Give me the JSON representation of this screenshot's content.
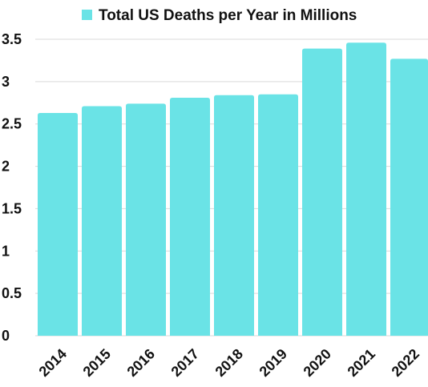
{
  "chart_data": {
    "type": "bar",
    "title": "",
    "xlabel": "",
    "ylabel": "",
    "categories": [
      "2014",
      "2015",
      "2016",
      "2017",
      "2018",
      "2019",
      "2020",
      "2021",
      "2022"
    ],
    "series": [
      {
        "name": "Total US Deaths per Year in Millions",
        "color": "#6ae3e6",
        "values": [
          2.63,
          2.71,
          2.74,
          2.81,
          2.84,
          2.85,
          3.39,
          3.46,
          3.27
        ]
      }
    ],
    "ylim": [
      0,
      3.5
    ],
    "yticks": [
      "0",
      "0.5",
      "1",
      "1.5",
      "2",
      "2.5",
      "3",
      "3.5"
    ],
    "grid": true,
    "legend_position": "top-center"
  }
}
